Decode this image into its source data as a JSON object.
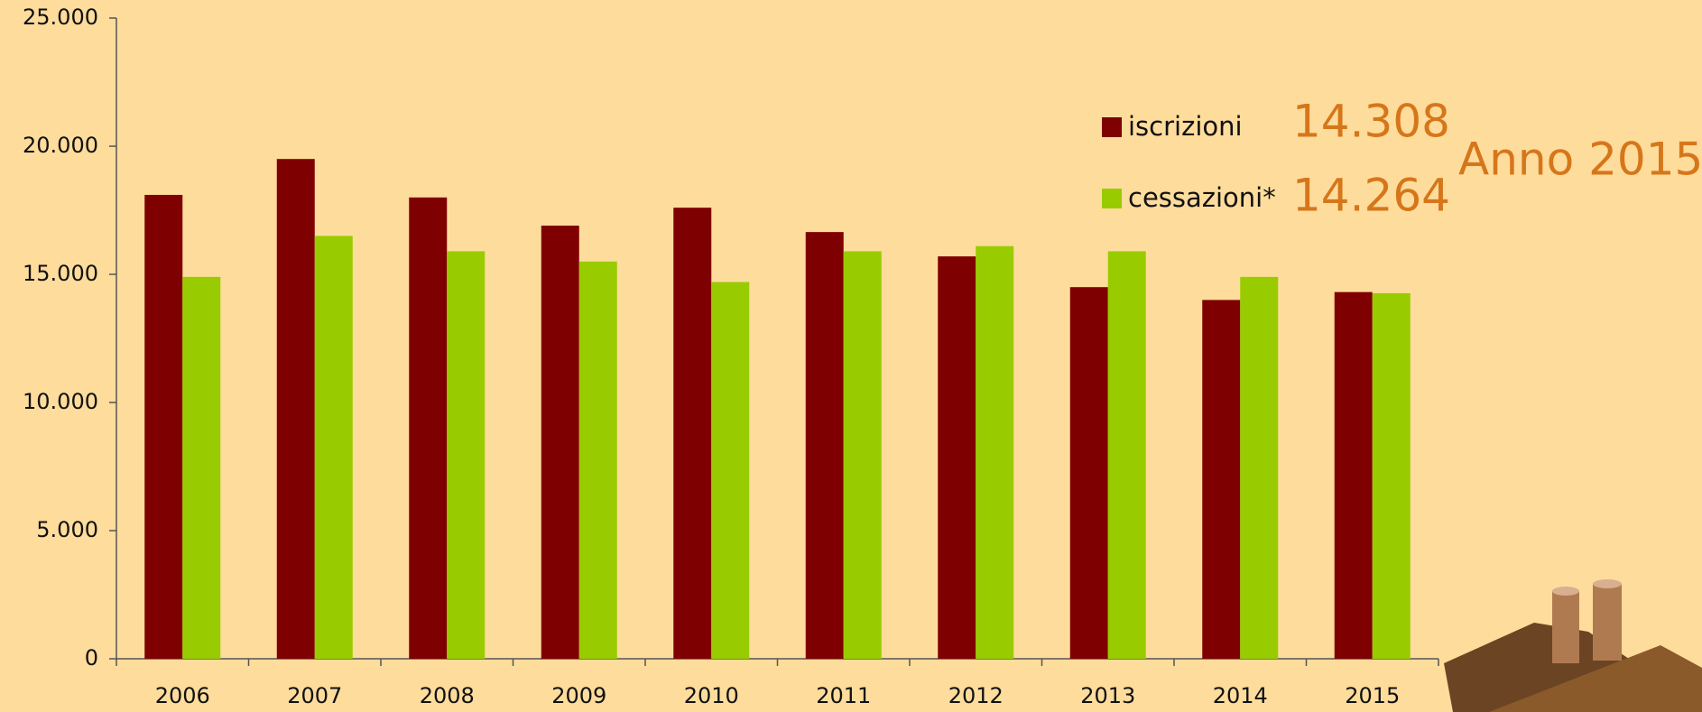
{
  "chart_data": {
    "type": "bar",
    "categories": [
      "2006",
      "2007",
      "2008",
      "2009",
      "2010",
      "2011",
      "2012",
      "2013",
      "2014",
      "2015"
    ],
    "series": [
      {
        "name": "iscrizioni",
        "color": "#7f0000",
        "values": [
          18100,
          19500,
          18000,
          16900,
          17600,
          16650,
          15700,
          14500,
          14000,
          14308
        ]
      },
      {
        "name": "cessazioni*",
        "color": "#99cc00",
        "values": [
          14900,
          16500,
          15900,
          15500,
          14700,
          15900,
          16100,
          15900,
          14900,
          14264
        ]
      }
    ],
    "annotations": [
      "14.308",
      "14.264",
      "Anno 2015"
    ],
    "ylim": [
      0,
      25000
    ],
    "yticks": [
      0,
      {
        "value": 5000,
        "label": "5.000"
      },
      {
        "value": 10000,
        "label": "10.000"
      },
      {
        "value": 15000,
        "label": "15.000"
      },
      {
        "value": 20000,
        "label": "20.000"
      },
      {
        "value": 25000,
        "label": "25.000"
      }
    ],
    "grid": false,
    "legend": "top-right"
  }
}
